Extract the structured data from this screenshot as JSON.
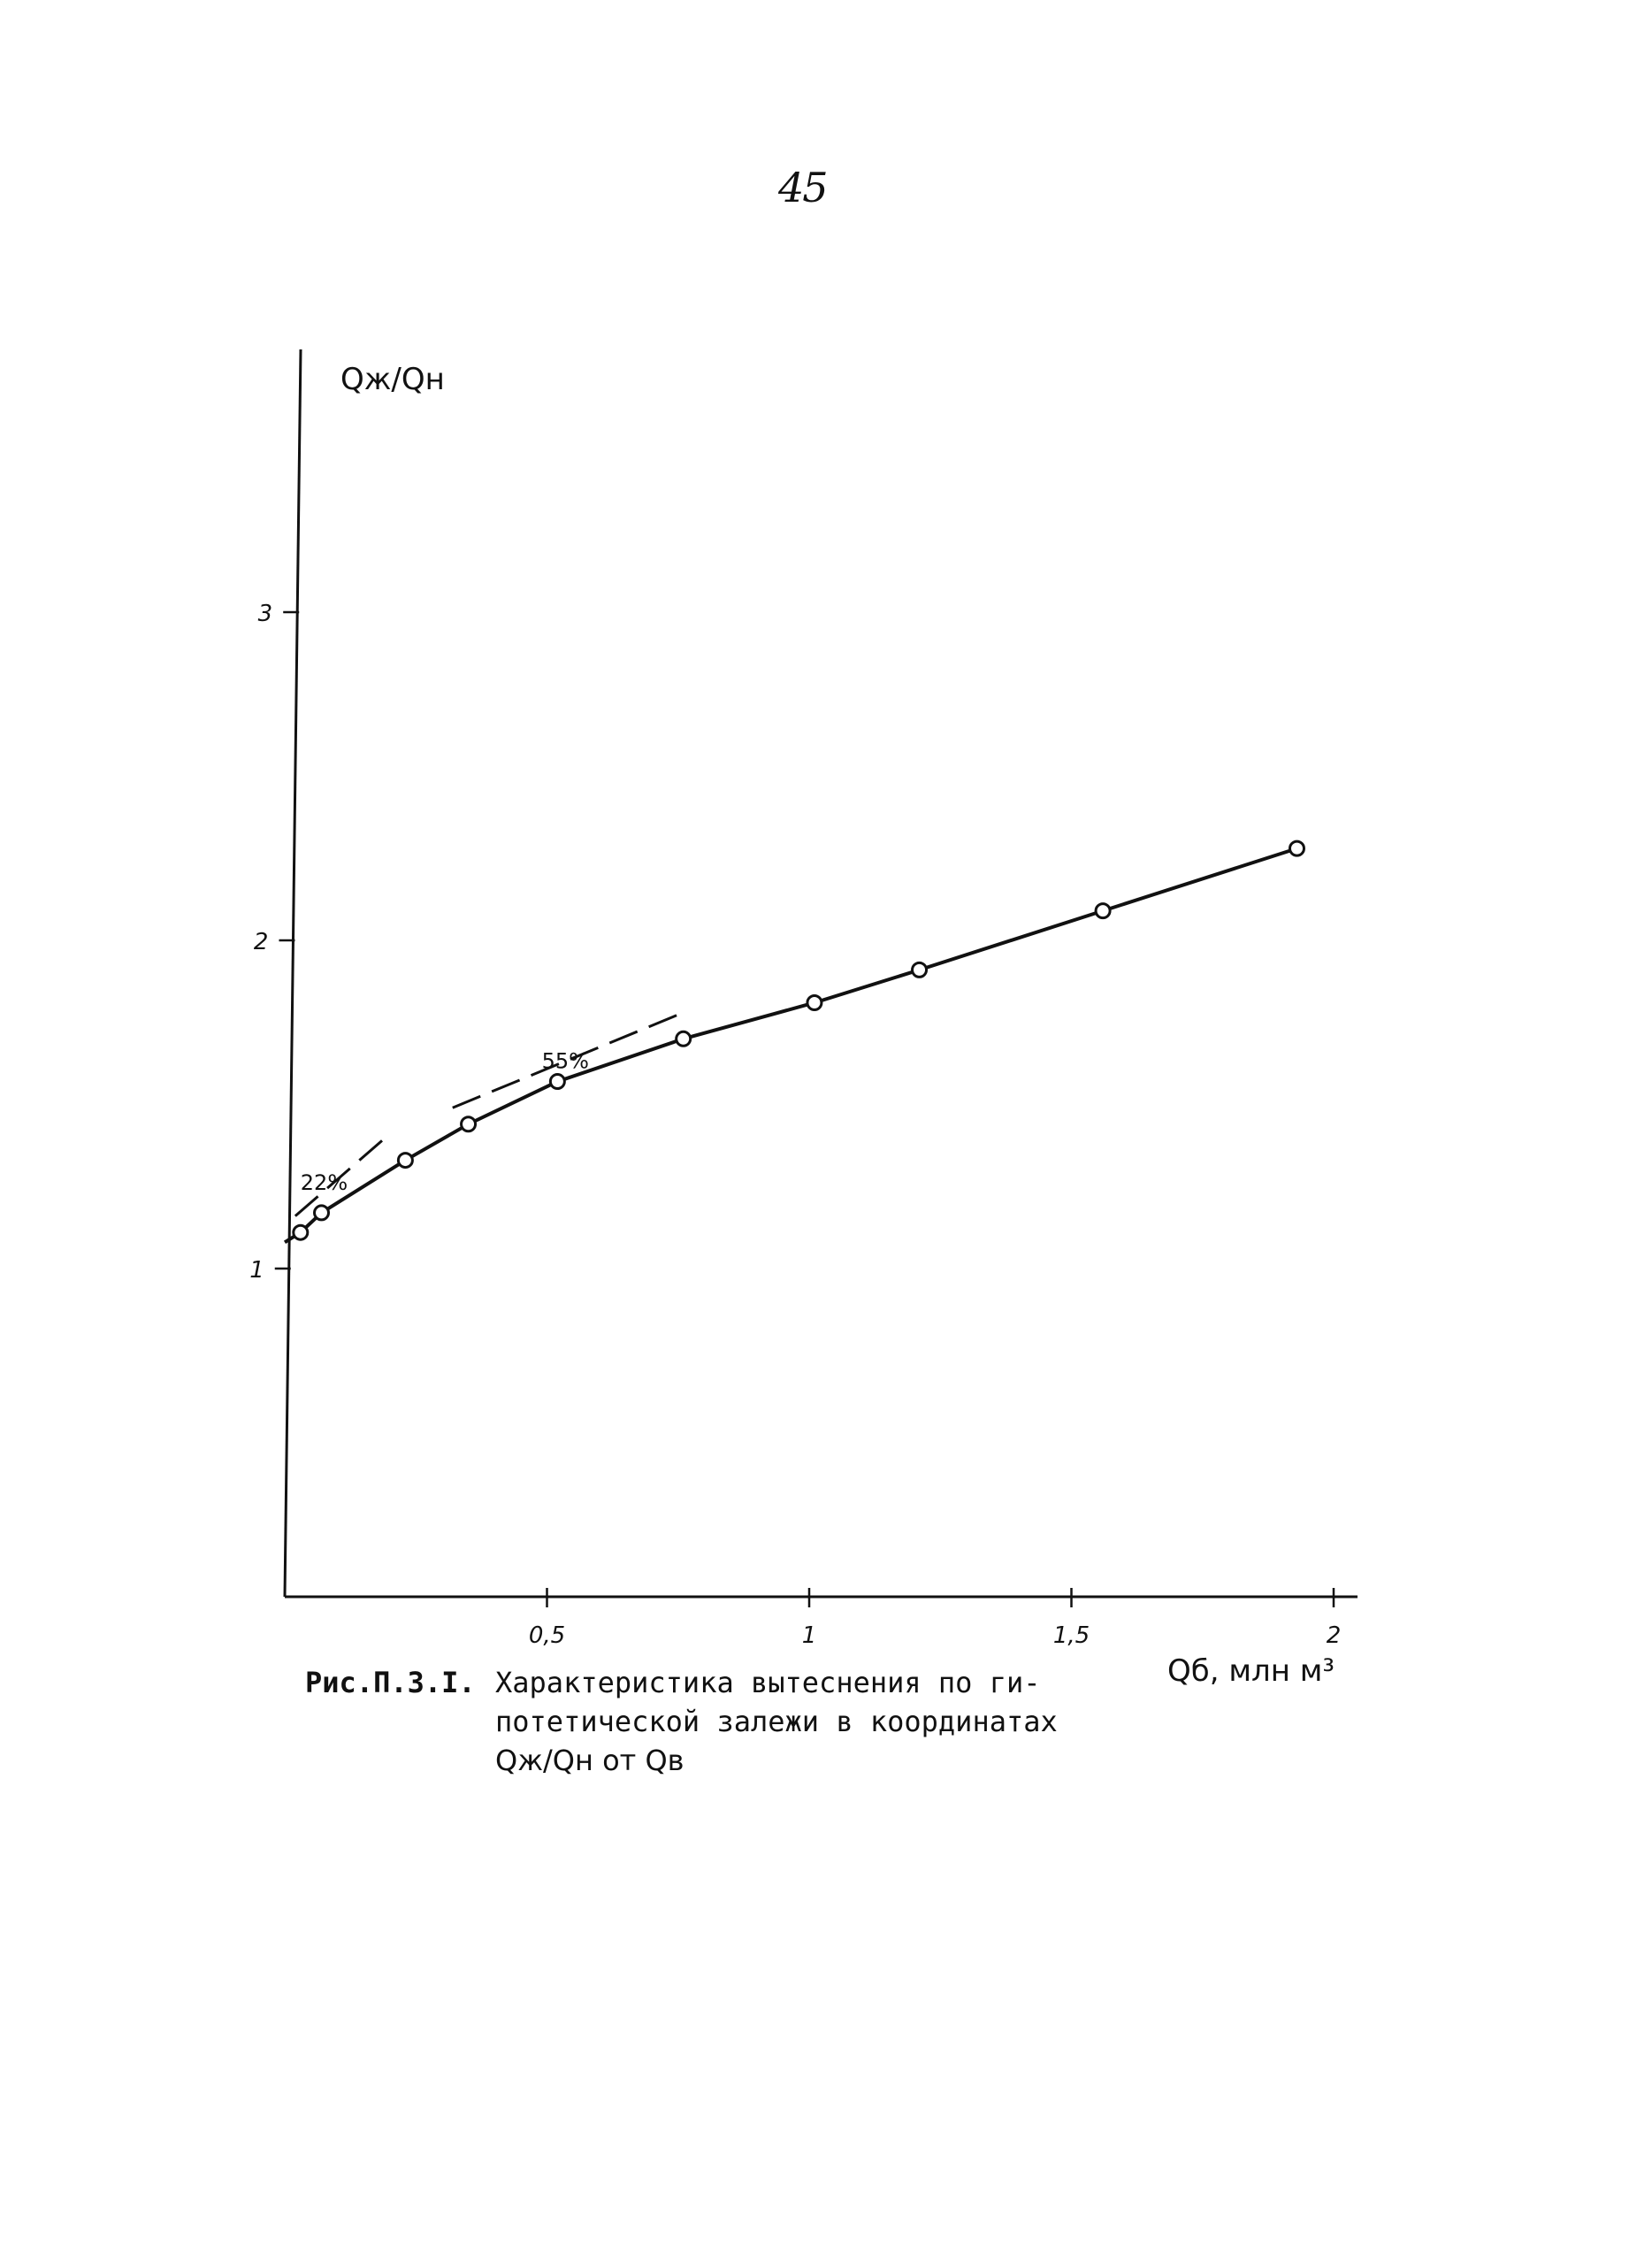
{
  "page_number": "45",
  "caption": {
    "label": "Рис.П.3.I.",
    "lines": [
      "Характеристика вытеснения по ги-",
      "потетической залежи в координатах"
    ],
    "formula_text": "Qж/Qн от Qв"
  },
  "chart_data": {
    "type": "line",
    "title": "",
    "xlabel": "Qб, млн м³",
    "ylabel": "Qж/Qн",
    "xlim": [
      0,
      2.05
    ],
    "ylim": [
      0,
      3.8
    ],
    "x_ticks": [
      0.5,
      1,
      1.5,
      2
    ],
    "x_tick_labels": [
      "0,5",
      "1",
      "1,5",
      "2"
    ],
    "y_ticks": [
      1,
      2,
      3
    ],
    "y_tick_labels": [
      "1",
      "2",
      "3"
    ],
    "grid": false,
    "legend": "none",
    "series": [
      {
        "x": [
          0.0,
          0.03,
          0.07,
          0.23,
          0.35,
          0.52,
          0.76,
          1.01,
          1.21,
          1.56,
          1.93
        ],
        "y": [
          1.08,
          1.11,
          1.17,
          1.33,
          1.44,
          1.57,
          1.7,
          1.81,
          1.91,
          2.09,
          2.28
        ],
        "markers": [
          false,
          true,
          true,
          true,
          true,
          true,
          true,
          true,
          true,
          true,
          true
        ]
      }
    ],
    "tangent_lines": [
      {
        "x": [
          0.02,
          0.2
        ],
        "y": [
          1.16,
          1.41
        ]
      },
      {
        "x": [
          0.32,
          0.76
        ],
        "y": [
          1.49,
          1.78
        ]
      }
    ],
    "annotations": [
      {
        "text": "22%",
        "x": 0.03,
        "y": 1.24
      },
      {
        "text": "55%",
        "x": 0.49,
        "y": 1.61
      }
    ],
    "colors": {
      "line": "#111111",
      "marker_fill": "#ffffff"
    }
  }
}
